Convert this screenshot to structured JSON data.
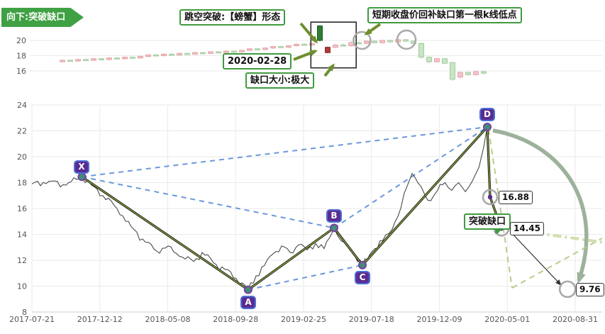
{
  "colors": {
    "accent_green": "#3f9b3f",
    "banner_green": "#3fa143",
    "arrow_olive": "#6e8f2e",
    "blue_dashed": "#5b8dd9",
    "leg_green": "#93b83d",
    "candle_up": "#f4c6ca",
    "candle_down": "#c9e4c5",
    "candle_up_strong": "#b23b3b",
    "candle_down_strong": "#2e7d32",
    "projection_curve": "#8ca58a",
    "projection_dash": "#b9cc8e",
    "gap_level": "#cfdfad"
  },
  "chart_data": [
    {
      "type": "candlestick",
      "banner": "向下:突破缺口",
      "yticks": [
        16,
        18,
        20
      ],
      "ylim": [
        13.5,
        22.8
      ],
      "annotations": {
        "pattern": "跳空突破:【螃蟹】形态",
        "gap_fill": "短期收盘价回补缺口第一根k线低点",
        "date": "2020-02-28",
        "gap_size": "缺口大小:极大"
      },
      "candles": [
        [
          17.2,
          17.4,
          17.5,
          17.1
        ],
        [
          17.4,
          17.3,
          17.5,
          17.2
        ],
        [
          17.3,
          17.5,
          17.6,
          17.2
        ],
        [
          17.5,
          17.4,
          17.6,
          17.3
        ],
        [
          17.4,
          17.6,
          17.7,
          17.3
        ],
        [
          17.6,
          17.5,
          17.7,
          17.4
        ],
        [
          17.5,
          17.7,
          17.8,
          17.4
        ],
        [
          17.7,
          17.6,
          17.8,
          17.5
        ],
        [
          17.6,
          17.8,
          17.9,
          17.5
        ],
        [
          17.8,
          17.7,
          17.9,
          17.6
        ],
        [
          17.7,
          17.9,
          18.0,
          17.6
        ],
        [
          17.9,
          18.1,
          18.2,
          17.8
        ],
        [
          18.1,
          18.0,
          18.2,
          17.9
        ],
        [
          18.0,
          18.2,
          18.3,
          17.9
        ],
        [
          18.2,
          18.1,
          18.3,
          18.0
        ],
        [
          18.1,
          18.3,
          18.4,
          18.0
        ],
        [
          18.3,
          18.2,
          18.4,
          18.1
        ],
        [
          18.2,
          18.4,
          18.5,
          18.1
        ],
        [
          18.4,
          18.3,
          18.5,
          18.2
        ],
        [
          18.3,
          18.5,
          18.6,
          18.2
        ],
        [
          18.5,
          18.4,
          18.6,
          18.3
        ],
        [
          18.4,
          18.6,
          18.7,
          18.3
        ],
        [
          18.6,
          18.5,
          18.7,
          18.4
        ],
        [
          18.5,
          18.7,
          18.8,
          18.4
        ],
        [
          18.7,
          18.9,
          19.0,
          18.6
        ],
        [
          18.9,
          18.8,
          19.0,
          18.7
        ],
        [
          18.8,
          19.0,
          19.1,
          18.7
        ],
        [
          19.0,
          19.2,
          19.3,
          18.9
        ],
        [
          19.2,
          19.1,
          19.3,
          19.0
        ],
        [
          19.1,
          19.3,
          19.4,
          19.0
        ],
        [
          19.3,
          19.5,
          19.6,
          19.2
        ],
        [
          19.5,
          19.4,
          19.6,
          19.3
        ],
        [
          19.4,
          19.6,
          19.7,
          19.3
        ],
        [
          21.9,
          20.0,
          22.0,
          19.9
        ],
        [
          18.4,
          19.1,
          19.2,
          18.3
        ],
        [
          19.1,
          19.4,
          19.5,
          19.0
        ],
        [
          19.4,
          19.3,
          19.6,
          19.2
        ],
        [
          19.3,
          19.7,
          19.9,
          19.2
        ],
        [
          19.7,
          19.6,
          19.9,
          19.5
        ],
        [
          19.6,
          19.9,
          20.0,
          19.5
        ],
        [
          19.9,
          19.7,
          20.0,
          19.6
        ],
        [
          19.7,
          20.0,
          20.1,
          19.6
        ],
        [
          20.0,
          19.8,
          20.1,
          19.7
        ],
        [
          19.8,
          20.1,
          20.2,
          19.7
        ],
        [
          20.1,
          19.9,
          20.2,
          19.8
        ],
        [
          19.9,
          19.6,
          20.0,
          19.5
        ],
        [
          19.6,
          17.8,
          19.7,
          17.6
        ],
        [
          17.8,
          17.2,
          17.9,
          17.0
        ],
        [
          17.2,
          17.6,
          17.7,
          17.1
        ],
        [
          17.6,
          17.0,
          17.7,
          16.9
        ],
        [
          17.1,
          14.9,
          17.2,
          14.7
        ],
        [
          15.2,
          15.8,
          15.9,
          15.0
        ],
        [
          15.8,
          15.5,
          15.9,
          15.4
        ],
        [
          15.5,
          15.9,
          16.0,
          15.4
        ],
        [
          15.9,
          15.7,
          16.0,
          15.5
        ]
      ],
      "highlights": [
        33,
        34
      ],
      "box": {
        "i0": 32.3,
        "i1": 37.2,
        "top": 22.4,
        "bottom": 16.4
      },
      "circles": [
        {
          "i": 38.4,
          "price": 20.0,
          "r": 12
        },
        {
          "i": 44.1,
          "price": 20.1,
          "r": 13
        }
      ]
    },
    {
      "type": "line",
      "yticks": [
        8,
        10,
        12,
        14,
        16,
        18,
        20,
        22,
        24
      ],
      "ylim": [
        8,
        24
      ],
      "xticks": [
        "2017-07-21",
        "2017-12-12",
        "2018-05-08",
        "2018-09-28",
        "2019-02-25",
        "2019-07-18",
        "2019-12-09",
        "2020-05-01",
        "2020-08-31"
      ],
      "breakout_label": "突破缺口",
      "pattern": {
        "points": [
          {
            "label": "X",
            "xf": 0.088,
            "price": 18.45
          },
          {
            "label": "A",
            "xf": 0.381,
            "price": 9.72
          },
          {
            "label": "B",
            "xf": 0.5325,
            "price": 14.5
          },
          {
            "label": "C",
            "xf": 0.5825,
            "price": 11.62
          },
          {
            "label": "D",
            "xf": 0.8025,
            "price": 22.3
          }
        ],
        "legs": [
          [
            "X",
            "A"
          ],
          [
            "A",
            "B"
          ],
          [
            "B",
            "C"
          ],
          [
            "C",
            "D"
          ],
          [
            "D",
            "p1"
          ],
          [
            "p1",
            "p2"
          ]
        ],
        "dashed": [
          [
            "X",
            "B"
          ],
          [
            "X",
            "D"
          ],
          [
            "A",
            "C"
          ],
          [
            "B",
            "D"
          ]
        ]
      },
      "projections": [
        {
          "id": "p1",
          "label": "16.88",
          "xf": 0.8075,
          "price": 16.88,
          "r": 10,
          "dot": true
        },
        {
          "id": "p2",
          "label": "14.45",
          "xf": 0.8275,
          "price": 14.45,
          "r": 10,
          "dot": true
        },
        {
          "id": "p3",
          "label": "9.76",
          "xf": 0.944,
          "price": 9.76,
          "r": 11,
          "dot": false
        }
      ],
      "price_line": [
        [
          0.0,
          17.9
        ],
        [
          0.03,
          18.1
        ],
        [
          0.06,
          17.8
        ],
        [
          0.088,
          18.45
        ],
        [
          0.105,
          17.8
        ],
        [
          0.125,
          17.0
        ],
        [
          0.15,
          16.0
        ],
        [
          0.175,
          14.6
        ],
        [
          0.2,
          13.4
        ],
        [
          0.22,
          12.7
        ],
        [
          0.24,
          13.1
        ],
        [
          0.26,
          12.3
        ],
        [
          0.285,
          11.9
        ],
        [
          0.3,
          12.6
        ],
        [
          0.32,
          11.8
        ],
        [
          0.34,
          11.3
        ],
        [
          0.36,
          10.6
        ],
        [
          0.381,
          9.72
        ],
        [
          0.395,
          10.8
        ],
        [
          0.41,
          11.6
        ],
        [
          0.425,
          12.5
        ],
        [
          0.44,
          13.1
        ],
        [
          0.455,
          12.6
        ],
        [
          0.47,
          13.2
        ],
        [
          0.485,
          12.8
        ],
        [
          0.5,
          13.3
        ],
        [
          0.515,
          12.9
        ],
        [
          0.5325,
          14.5
        ],
        [
          0.545,
          13.5
        ],
        [
          0.565,
          12.6
        ],
        [
          0.5825,
          11.62
        ],
        [
          0.6,
          12.7
        ],
        [
          0.618,
          13.5
        ],
        [
          0.635,
          14.4
        ],
        [
          0.65,
          16.0
        ],
        [
          0.662,
          17.8
        ],
        [
          0.67,
          18.7
        ],
        [
          0.68,
          18.0
        ],
        [
          0.692,
          17.1
        ],
        [
          0.703,
          16.6
        ],
        [
          0.715,
          17.4
        ],
        [
          0.728,
          18.0
        ],
        [
          0.74,
          17.4
        ],
        [
          0.752,
          18.0
        ],
        [
          0.764,
          17.3
        ],
        [
          0.776,
          18.1
        ],
        [
          0.788,
          19.2
        ],
        [
          0.796,
          20.7
        ],
        [
          0.8025,
          22.3
        ],
        [
          0.807,
          18.9
        ],
        [
          0.8075,
          16.88
        ],
        [
          0.8275,
          14.45
        ]
      ]
    }
  ]
}
